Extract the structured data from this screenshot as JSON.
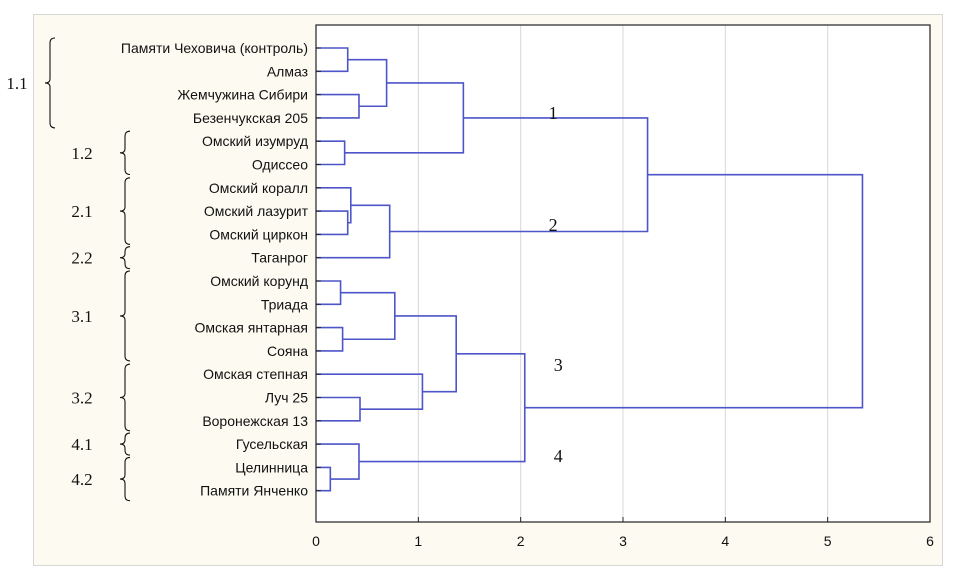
{
  "chart_data": {
    "type": "dendrogram",
    "orientation": "horizontal",
    "xlim": [
      0,
      6
    ],
    "xticks": [
      0,
      1,
      2,
      3,
      4,
      5,
      6
    ],
    "grid": true,
    "colors": {
      "lines": "#4d55c8",
      "grid": "#d8d8d8",
      "axis": "#222222",
      "frame": "#fdfbf1"
    },
    "leaves": [
      "Памяти Чеховича (контроль)",
      "Алмаз",
      "Жемчужина Сибири",
      "Безенчукская 205",
      "Омский изумруд",
      "Одиссео",
      "Омский коралл",
      "Омский лазурит",
      "Омский циркон",
      "Таганрог",
      "Омский корунд",
      "Триада",
      "Омская янтарная",
      "Сояна",
      "Омская степная",
      "Луч 25",
      "Воронежская 13",
      "Гусельская",
      "Целинница",
      "Памяти Янченко"
    ],
    "merges": [
      {
        "a": "L0",
        "b": "L1",
        "height": 0.31
      },
      {
        "a": "L2",
        "b": "L3",
        "height": 0.42
      },
      {
        "a": "M0",
        "b": "M1",
        "height": 0.69
      },
      {
        "a": "L4",
        "b": "L5",
        "height": 0.28
      },
      {
        "a": "M2",
        "b": "M3",
        "height": 1.44
      },
      {
        "a": "L7",
        "b": "L8",
        "height": 0.31
      },
      {
        "a": "L6",
        "b": "M5",
        "height": 0.34
      },
      {
        "a": "M6",
        "b": "L9",
        "height": 0.72
      },
      {
        "a": "M4",
        "b": "M7",
        "height": 3.24
      },
      {
        "a": "L10",
        "b": "L11",
        "height": 0.24
      },
      {
        "a": "L12",
        "b": "L13",
        "height": 0.26
      },
      {
        "a": "M9",
        "b": "M10",
        "height": 0.77
      },
      {
        "a": "L15",
        "b": "L16",
        "height": 0.43
      },
      {
        "a": "L14",
        "b": "M12",
        "height": 1.04
      },
      {
        "a": "M11",
        "b": "M13",
        "height": 1.37
      },
      {
        "a": "L18",
        "b": "L19",
        "height": 0.14
      },
      {
        "a": "L17",
        "b": "M15",
        "height": 0.42
      },
      {
        "a": "M14",
        "b": "M16",
        "height": 2.04
      },
      {
        "a": "M8",
        "b": "M17",
        "height": 5.34
      }
    ],
    "cluster_labels": [
      {
        "label": "1",
        "x": 2.2,
        "leaf_pos": 2.8
      },
      {
        "label": "2",
        "x": 2.2,
        "leaf_pos": 7.6
      },
      {
        "label": "3",
        "x": 2.25,
        "leaf_pos": 13.6
      },
      {
        "label": "4",
        "x": 2.25,
        "leaf_pos": 17.5
      }
    ],
    "groups": [
      {
        "label": "1.1",
        "from": 0,
        "to": 3
      },
      {
        "label": "1.2",
        "from": 4,
        "to": 5
      },
      {
        "label": "2.1",
        "from": 6,
        "to": 8
      },
      {
        "label": "2.2",
        "from": 9,
        "to": 9
      },
      {
        "label": "3.1",
        "from": 10,
        "to": 13
      },
      {
        "label": "3.2",
        "from": 14,
        "to": 16
      },
      {
        "label": "4.1",
        "from": 17,
        "to": 17
      },
      {
        "label": "4.2",
        "from": 18,
        "to": 19
      }
    ]
  }
}
